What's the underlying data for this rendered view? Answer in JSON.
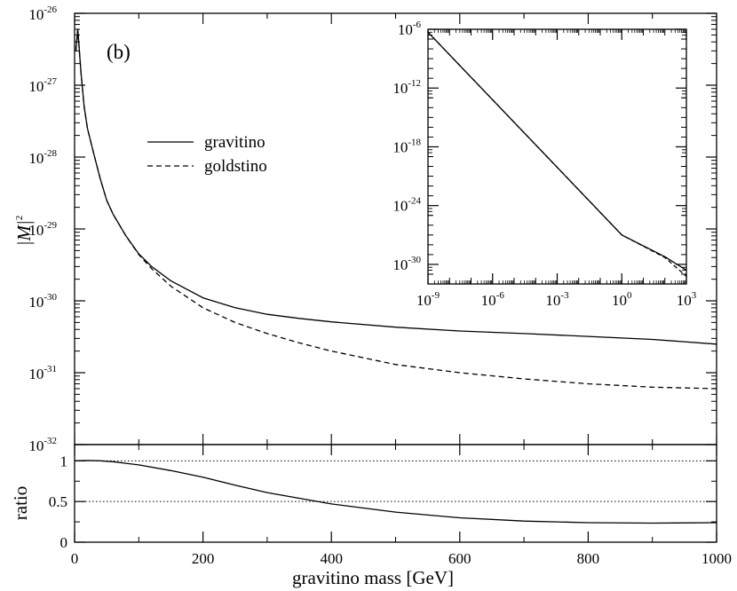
{
  "chart_data": [
    {
      "id": "main",
      "type": "line",
      "panel_label": "(b)",
      "xlabel": "gravitino mass [GeV]",
      "ylabel": "|M|",
      "ylabel_sup": "2",
      "xscale": "linear",
      "yscale": "log",
      "xlim": [
        0,
        1000
      ],
      "ylim": [
        1e-32,
        1e-26
      ],
      "y_ticks": [
        {
          "base": "10",
          "exp": "-26"
        },
        {
          "base": "10",
          "exp": "-27"
        },
        {
          "base": "10",
          "exp": "-28"
        },
        {
          "base": "10",
          "exp": "-29"
        },
        {
          "base": "10",
          "exp": "-30"
        },
        {
          "base": "10",
          "exp": "-31"
        },
        {
          "base": "10",
          "exp": "-32"
        }
      ],
      "legend": {
        "placement": "upper-left",
        "entries": [
          {
            "label": "gravitino",
            "style": "solid"
          },
          {
            "label": "goldstino",
            "style": "dashed"
          }
        ]
      },
      "series": [
        {
          "name": "gravitino",
          "style": "solid",
          "x": [
            2,
            5,
            10,
            15,
            20,
            30,
            40,
            50,
            60,
            80,
            100,
            120,
            150,
            200,
            250,
            300,
            350,
            400,
            500,
            600,
            700,
            800,
            900,
            1000
          ],
          "y": [
            3e-27,
            6e-27,
            1.5e-27,
            5e-28,
            2.5e-28,
            1.1e-28,
            5e-29,
            2.5e-29,
            1.6e-29,
            8e-30,
            4.5e-30,
            3e-30,
            1.9e-30,
            1.1e-30,
            8e-31,
            6.5e-31,
            5.7e-31,
            5.1e-31,
            4.3e-31,
            3.8e-31,
            3.5e-31,
            3.2e-31,
            2.9e-31,
            2.5e-31
          ]
        },
        {
          "name": "goldstino",
          "style": "dashed",
          "x": [
            2,
            5,
            10,
            15,
            20,
            30,
            40,
            50,
            60,
            80,
            100,
            120,
            150,
            200,
            250,
            300,
            350,
            400,
            500,
            600,
            700,
            800,
            900,
            1000
          ],
          "y": [
            3e-27,
            6e-27,
            1.5e-27,
            5e-28,
            2.5e-28,
            1.1e-28,
            5e-29,
            2.5e-29,
            1.6e-29,
            8e-30,
            4.4e-30,
            2.8e-30,
            1.6e-30,
            8e-31,
            5e-31,
            3.5e-31,
            2.6e-31,
            2e-31,
            1.3e-31,
            1e-31,
            8.2e-32,
            7e-32,
            6.3e-32,
            6e-32
          ]
        }
      ]
    },
    {
      "id": "inset",
      "type": "line",
      "xscale": "log",
      "yscale": "log",
      "xlim": [
        1e-09,
        1000
      ],
      "ylim": [
        1e-32,
        1e-06
      ],
      "x_ticks": [
        {
          "base": "10",
          "exp": "-9"
        },
        {
          "base": "10",
          "exp": "-6"
        },
        {
          "base": "10",
          "exp": "-3"
        },
        {
          "base": "10",
          "exp": "0"
        },
        {
          "base": "10",
          "exp": "3"
        }
      ],
      "y_ticks": [
        {
          "base": "10",
          "exp": "-6"
        },
        {
          "base": "10",
          "exp": "-12"
        },
        {
          "base": "10",
          "exp": "-18"
        },
        {
          "base": "10",
          "exp": "-24"
        },
        {
          "base": "10",
          "exp": "-30"
        }
      ],
      "series": [
        {
          "name": "gravitino",
          "style": "solid",
          "x": [
            1e-09,
            1,
            100,
            1000
          ],
          "y": [
            5e-07,
            1e-27,
            6e-30,
            2.5e-31
          ]
        },
        {
          "name": "goldstino",
          "style": "dashed",
          "x": [
            1e-09,
            1,
            100,
            1000
          ],
          "y": [
            5e-07,
            1e-27,
            5e-30,
            6e-32
          ]
        }
      ]
    },
    {
      "id": "ratio",
      "type": "line",
      "xlabel": "gravitino mass [GeV]",
      "ylabel": "ratio",
      "xscale": "linear",
      "yscale": "linear",
      "xlim": [
        0,
        1000
      ],
      "ylim": [
        0,
        1.2
      ],
      "x_ticks": [
        "0",
        "200",
        "400",
        "600",
        "800",
        "1000"
      ],
      "y_ticks": [
        "0",
        "0.5",
        "1"
      ],
      "reference_lines": [
        1,
        0.5
      ],
      "series": [
        {
          "name": "ratio",
          "style": "solid",
          "x": [
            0,
            20,
            40,
            60,
            80,
            100,
            150,
            200,
            250,
            300,
            350,
            400,
            450,
            500,
            600,
            700,
            800,
            900,
            1000
          ],
          "y": [
            1.0,
            1.005,
            1.0,
            0.99,
            0.97,
            0.95,
            0.88,
            0.8,
            0.7,
            0.61,
            0.54,
            0.47,
            0.42,
            0.37,
            0.3,
            0.26,
            0.24,
            0.235,
            0.24
          ]
        }
      ]
    }
  ]
}
